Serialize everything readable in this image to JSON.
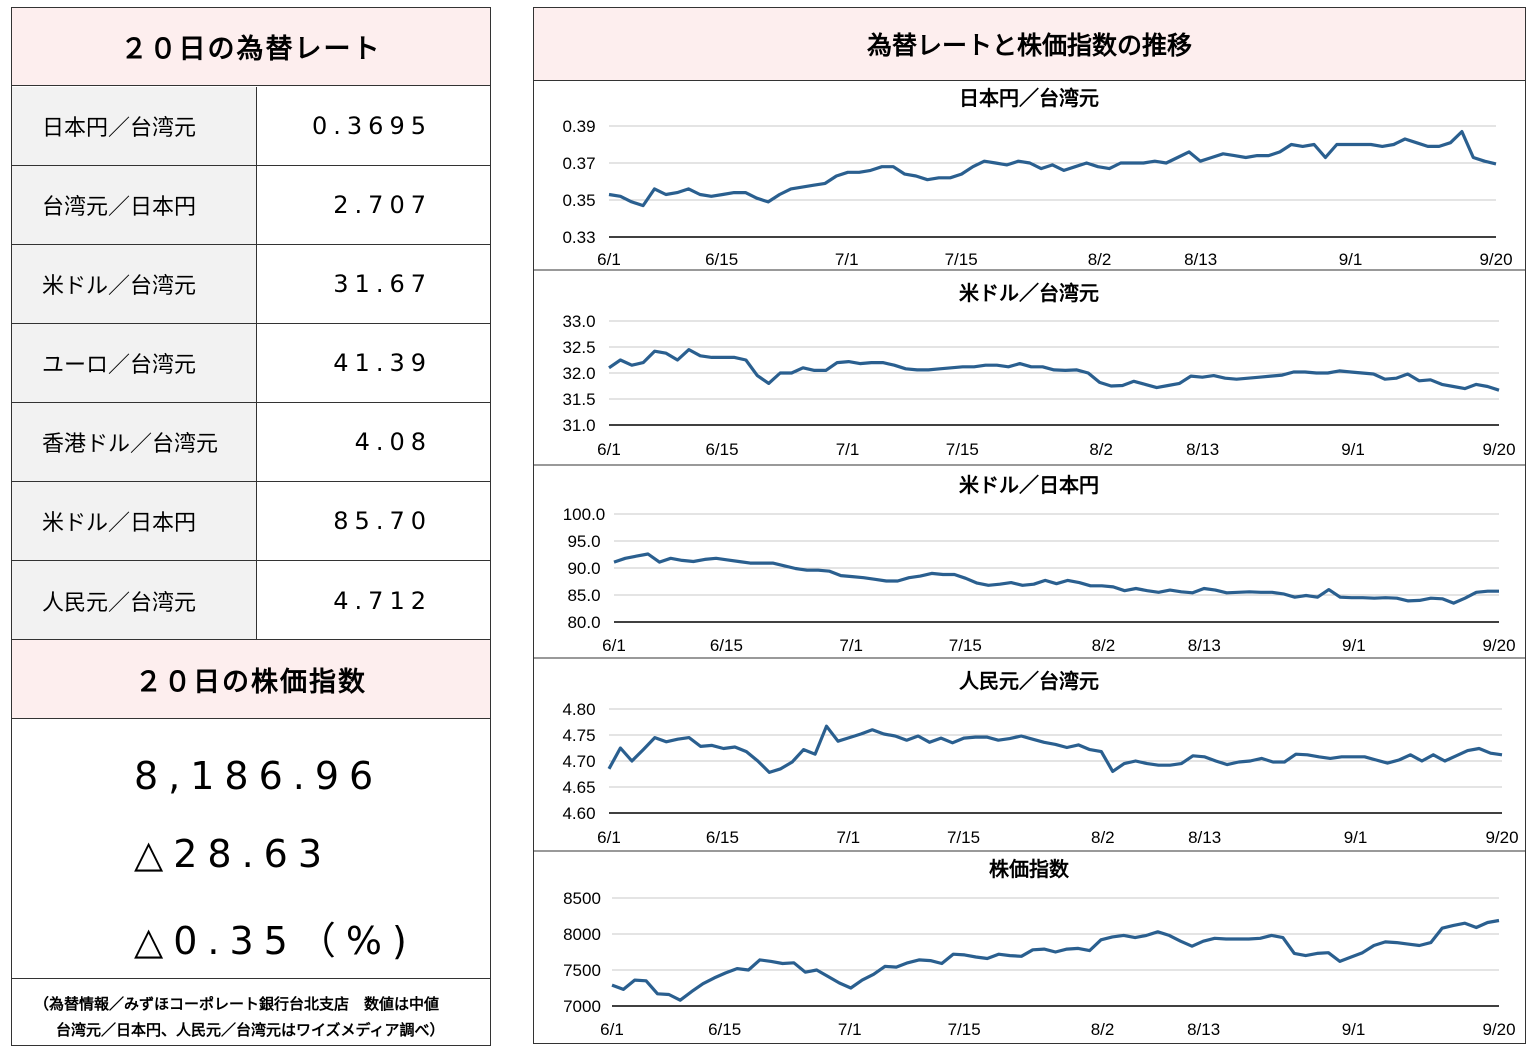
{
  "left": {
    "rate_header": "２０日の為替レート",
    "rates": [
      {
        "name": "日本円／台湾元",
        "value": "0.3695"
      },
      {
        "name": "台湾元／日本円",
        "value": "2.707"
      },
      {
        "name": "米ドル／台湾元",
        "value": "31.67"
      },
      {
        "name": "ユーロ／台湾元",
        "value": "41.39"
      },
      {
        "name": "香港ドル／台湾元",
        "value": "4.08"
      },
      {
        "name": "米ドル／日本円",
        "value": "85.70"
      },
      {
        "name": "人民元／台湾元",
        "value": "4.712"
      }
    ],
    "stock_header": "２０日の株価指数",
    "stock": {
      "index": "8,186.96",
      "change": "△28.63",
      "pct": "△0.35（%)"
    },
    "footnote": {
      "line1": "（為替情報／みずほコーポレート銀行台北支店　数値は中値",
      "line2": "台湾元／日本円、人民元／台湾元はワイズメディア調べ）"
    }
  },
  "right": {
    "title": "為替レートと株価指数の推移"
  },
  "colors": {
    "line": "#2a5f8f",
    "header_bg": "#fdeeee",
    "label_bg": "#f2f2f2"
  },
  "chart_data": [
    {
      "type": "line",
      "title": "日本円／台湾元",
      "xticks": [
        "6/1",
        "6/15",
        "7/1",
        "7/15",
        "8/2",
        "8/13",
        "9/1",
        "9/20"
      ],
      "yticks": [
        "0.39",
        "0.37",
        "0.35",
        "0.33"
      ],
      "ylim": [
        0.33,
        0.39
      ],
      "grid": true,
      "values": [
        0.353,
        0.352,
        0.349,
        0.347,
        0.356,
        0.353,
        0.354,
        0.356,
        0.353,
        0.352,
        0.353,
        0.354,
        0.354,
        0.351,
        0.349,
        0.353,
        0.356,
        0.357,
        0.358,
        0.359,
        0.363,
        0.365,
        0.365,
        0.366,
        0.368,
        0.368,
        0.364,
        0.363,
        0.361,
        0.362,
        0.362,
        0.364,
        0.368,
        0.371,
        0.37,
        0.369,
        0.371,
        0.37,
        0.367,
        0.369,
        0.366,
        0.368,
        0.37,
        0.368,
        0.367,
        0.37,
        0.37,
        0.37,
        0.371,
        0.37,
        0.373,
        0.376,
        0.371,
        0.373,
        0.375,
        0.374,
        0.373,
        0.374,
        0.374,
        0.376,
        0.38,
        0.379,
        0.38,
        0.373,
        0.38,
        0.38,
        0.38,
        0.38,
        0.379,
        0.38,
        0.383,
        0.381,
        0.379,
        0.379,
        0.381,
        0.387,
        0.373,
        0.371,
        0.3695
      ]
    },
    {
      "type": "line",
      "title": "米ドル／台湾元",
      "xticks": [
        "6/1",
        "6/15",
        "7/1",
        "7/15",
        "8/2",
        "8/13",
        "9/1",
        "9/20"
      ],
      "yticks": [
        "33.0",
        "32.5",
        "32.0",
        "31.5",
        "31.0"
      ],
      "ylim": [
        31.0,
        33.0
      ],
      "grid": true,
      "values": [
        32.1,
        32.25,
        32.15,
        32.2,
        32.42,
        32.38,
        32.25,
        32.45,
        32.33,
        32.3,
        32.3,
        32.3,
        32.25,
        31.95,
        31.8,
        32.0,
        32.0,
        32.1,
        32.05,
        32.05,
        32.2,
        32.22,
        32.18,
        32.2,
        32.2,
        32.15,
        32.08,
        32.06,
        32.06,
        32.08,
        32.1,
        32.12,
        32.12,
        32.15,
        32.15,
        32.12,
        32.18,
        32.12,
        32.12,
        32.06,
        32.05,
        32.06,
        32.0,
        31.82,
        31.75,
        31.76,
        31.84,
        31.78,
        31.72,
        31.76,
        31.8,
        31.94,
        31.92,
        31.95,
        31.9,
        31.88,
        31.9,
        31.92,
        31.94,
        31.96,
        32.02,
        32.02,
        32.0,
        32.0,
        32.04,
        32.02,
        32.0,
        31.98,
        31.88,
        31.9,
        31.98,
        31.85,
        31.87,
        31.78,
        31.74,
        31.7,
        31.78,
        31.74,
        31.67
      ]
    },
    {
      "type": "line",
      "title": "米ドル／日本円",
      "xticks": [
        "6/1",
        "6/15",
        "7/1",
        "7/15",
        "8/2",
        "8/13",
        "9/1",
        "9/20"
      ],
      "yticks": [
        "100.0",
        "95.0",
        "90.0",
        "85.0",
        "80.0"
      ],
      "ylim": [
        80.0,
        100.0
      ],
      "grid": true,
      "values": [
        91.1,
        91.8,
        92.2,
        92.6,
        91.1,
        91.8,
        91.4,
        91.2,
        91.6,
        91.8,
        91.5,
        91.2,
        90.9,
        90.9,
        90.9,
        90.4,
        89.9,
        89.6,
        89.6,
        89.4,
        88.6,
        88.4,
        88.2,
        87.9,
        87.6,
        87.6,
        88.2,
        88.5,
        89.0,
        88.8,
        88.8,
        88.1,
        87.2,
        86.8,
        87.0,
        87.3,
        86.8,
        87.0,
        87.7,
        87.1,
        87.7,
        87.3,
        86.7,
        86.7,
        86.5,
        85.8,
        86.2,
        85.8,
        85.5,
        85.9,
        85.6,
        85.4,
        86.2,
        85.9,
        85.4,
        85.5,
        85.6,
        85.5,
        85.5,
        85.2,
        84.6,
        84.9,
        84.6,
        86.0,
        84.6,
        84.5,
        84.5,
        84.4,
        84.5,
        84.4,
        83.9,
        84.0,
        84.4,
        84.3,
        83.5,
        84.4,
        85.5,
        85.7,
        85.7
      ]
    },
    {
      "type": "line",
      "title": "人民元／台湾元",
      "xticks": [
        "6/1",
        "6/15",
        "7/1",
        "7/15",
        "8/2",
        "8/13",
        "9/1",
        "9/20"
      ],
      "yticks": [
        "4.80",
        "4.75",
        "4.70",
        "4.65",
        "4.60"
      ],
      "ylim": [
        4.6,
        4.8
      ],
      "grid": true,
      "values": [
        4.685,
        4.725,
        4.7,
        4.722,
        4.745,
        4.737,
        4.742,
        4.745,
        4.728,
        4.73,
        4.724,
        4.727,
        4.718,
        4.7,
        4.678,
        4.685,
        4.698,
        4.722,
        4.713,
        4.767,
        4.738,
        4.745,
        4.752,
        4.76,
        4.752,
        4.748,
        4.74,
        4.748,
        4.736,
        4.744,
        4.735,
        4.744,
        4.746,
        4.746,
        4.74,
        4.743,
        4.748,
        4.742,
        4.736,
        4.732,
        4.726,
        4.731,
        4.722,
        4.718,
        4.68,
        4.695,
        4.7,
        4.695,
        4.692,
        4.692,
        4.695,
        4.71,
        4.708,
        4.7,
        4.693,
        4.698,
        4.7,
        4.705,
        4.698,
        4.698,
        4.713,
        4.712,
        4.708,
        4.705,
        4.708,
        4.708,
        4.708,
        4.702,
        4.696,
        4.702,
        4.712,
        4.7,
        4.712,
        4.7,
        4.71,
        4.72,
        4.724,
        4.715,
        4.712
      ]
    },
    {
      "type": "line",
      "title": "株価指数",
      "xticks": [
        "6/1",
        "6/15",
        "7/1",
        "7/15",
        "8/2",
        "8/13",
        "9/1",
        "9/20"
      ],
      "yticks": [
        "8500",
        "8000",
        "7500",
        "7000"
      ],
      "ylim": [
        7000,
        8500
      ],
      "grid": true,
      "values": [
        7290,
        7230,
        7360,
        7350,
        7170,
        7160,
        7080,
        7200,
        7310,
        7390,
        7460,
        7520,
        7500,
        7640,
        7620,
        7590,
        7600,
        7470,
        7500,
        7410,
        7320,
        7250,
        7360,
        7440,
        7550,
        7540,
        7600,
        7640,
        7630,
        7590,
        7720,
        7710,
        7680,
        7660,
        7720,
        7700,
        7690,
        7780,
        7790,
        7750,
        7790,
        7800,
        7770,
        7920,
        7960,
        7980,
        7950,
        7980,
        8030,
        7980,
        7900,
        7830,
        7900,
        7940,
        7930,
        7930,
        7930,
        7940,
        7980,
        7950,
        7730,
        7700,
        7730,
        7740,
        7620,
        7680,
        7740,
        7840,
        7890,
        7880,
        7860,
        7840,
        7880,
        8080,
        8120,
        8150,
        8090,
        8160,
        8187
      ]
    }
  ]
}
